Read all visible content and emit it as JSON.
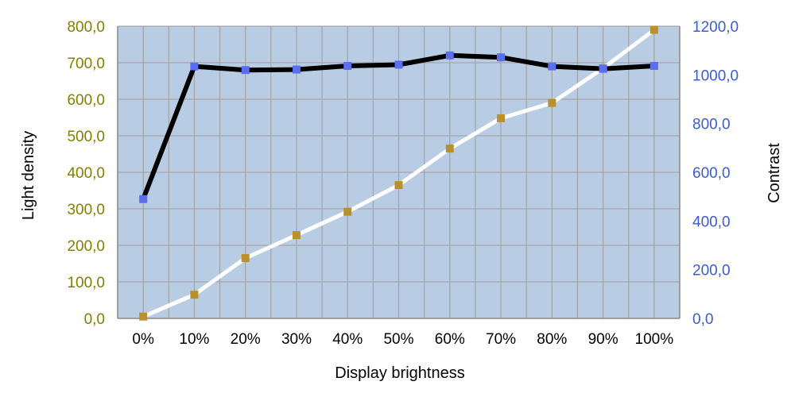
{
  "chart_data": {
    "type": "line",
    "categories": [
      "0%",
      "10%",
      "20%",
      "30%",
      "40%",
      "50%",
      "60%",
      "70%",
      "80%",
      "90%",
      "100%"
    ],
    "xlabel": "Display brightness",
    "ylabel_left": "Light density",
    "ylabel_right": "Contrast",
    "ylim_left": [
      0,
      800
    ],
    "ylim_right": [
      0,
      1200
    ],
    "yticks_left": [
      "0,0",
      "100,0",
      "200,0",
      "300,0",
      "400,0",
      "500,0",
      "600,0",
      "700,0",
      "800,0"
    ],
    "yticks_right": [
      "0,0",
      "200,0",
      "400,0",
      "600,0",
      "800,0",
      "1000,0",
      "1200,0"
    ],
    "grid": true,
    "legend": "none",
    "series": [
      {
        "axis": "left",
        "values": [
          5,
          65,
          165,
          228,
          292,
          365,
          465,
          548,
          590,
          685,
          790
        ],
        "line_color": "#ffffff",
        "marker_color": "#b8902c"
      },
      {
        "axis": "right",
        "values": [
          490,
          1035,
          1020,
          1022,
          1037,
          1042,
          1080,
          1072,
          1035,
          1025,
          1037
        ],
        "line_color": "#000000",
        "marker_color": "#5a6ff0"
      }
    ],
    "colors": {
      "plot_background": "#b8cce4",
      "grid_line": "#a6a6a6",
      "left_tick_text": "#808000",
      "right_tick_text": "#3b5bdb"
    }
  }
}
